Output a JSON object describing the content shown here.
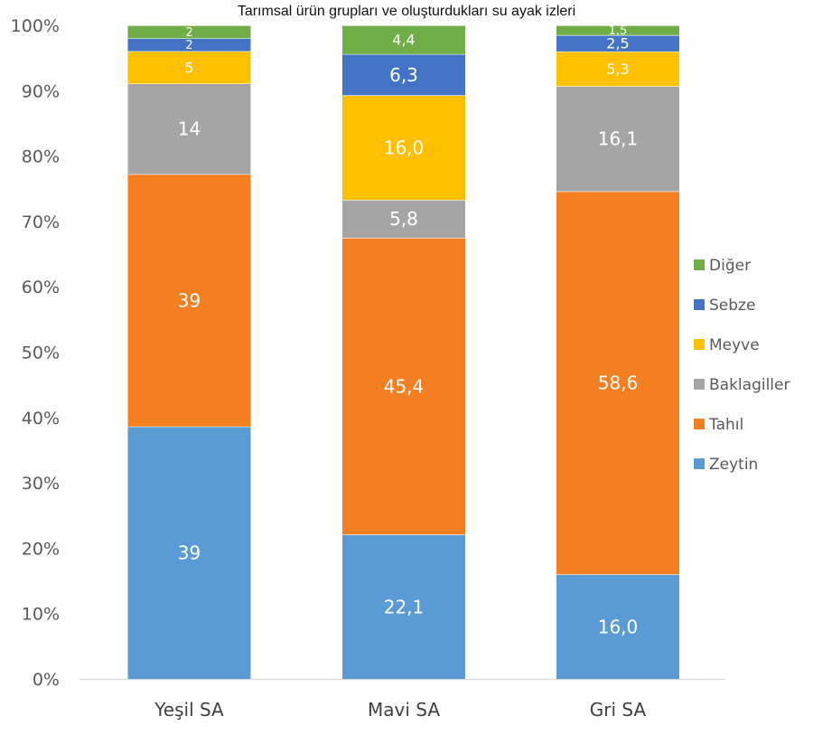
{
  "chart_data": {
    "type": "bar",
    "stacked": true,
    "percent_stacked": true,
    "title": "Tarımsal ürün grupları ve oluşturdukları su ayak izleri",
    "xlabel": "",
    "ylabel": "",
    "categories": [
      "Yeşil SA",
      "Mavi SA",
      "Gri SA"
    ],
    "ylim": [
      0,
      100
    ],
    "yticks": [
      "0%",
      "10%",
      "20%",
      "30%",
      "40%",
      "50%",
      "60%",
      "70%",
      "80%",
      "90%",
      "100%"
    ],
    "grid": false,
    "legend_position": "right",
    "series": [
      {
        "name": "Zeytin",
        "color": "#5b9bd5",
        "values": [
          39,
          22.1,
          16.0
        ],
        "labels": [
          "39",
          "22,1",
          "16,0"
        ]
      },
      {
        "name": "Tahıl",
        "color": "#f47f20",
        "values": [
          39,
          45.4,
          58.6
        ],
        "labels": [
          "39",
          "45,4",
          "58,6"
        ]
      },
      {
        "name": "Baklagiller",
        "color": "#a5a5a5",
        "values": [
          14,
          5.8,
          16.1
        ],
        "labels": [
          "14",
          "5,8",
          "16,1"
        ]
      },
      {
        "name": "Meyve",
        "color": "#ffc000",
        "values": [
          5,
          16.0,
          5.3
        ],
        "labels": [
          "5",
          "16,0",
          "5,3"
        ]
      },
      {
        "name": "Sebze",
        "color": "#4472c4",
        "values": [
          2,
          6.3,
          2.5
        ],
        "labels": [
          "2",
          "6,3",
          "2,5"
        ]
      },
      {
        "name": "Diğer",
        "color": "#70ad47",
        "values": [
          2,
          4.4,
          1.5
        ],
        "labels": [
          "2",
          "4,4",
          "1,5"
        ]
      }
    ],
    "legend_order": [
      "Diğer",
      "Sebze",
      "Meyve",
      "Baklagiller",
      "Tahıl",
      "Zeytin"
    ]
  }
}
